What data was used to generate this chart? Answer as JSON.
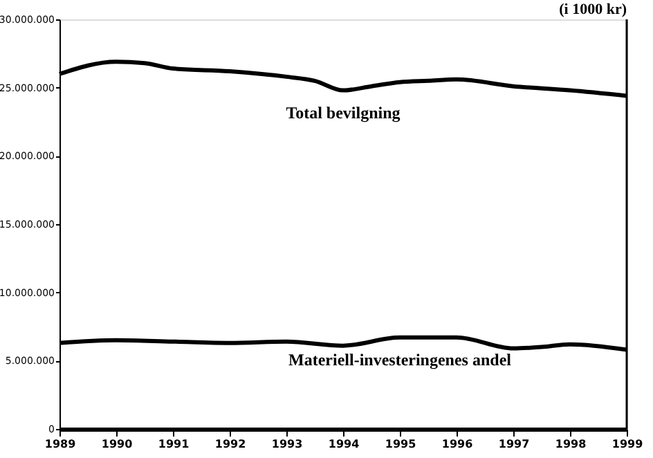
{
  "chart_data": {
    "type": "line",
    "ylabel": "(i 1000 kr)",
    "xlim": [
      1989,
      1999
    ],
    "xticks": [
      1989,
      1990,
      1991,
      1992,
      1993,
      1994,
      1995,
      1996,
      1997,
      1998,
      1999
    ],
    "ylim": [
      0,
      30000000
    ],
    "yticks": [
      0,
      {
        "value": 5000000,
        "label": "5.000.000"
      },
      {
        "value": 10000000,
        "label": "10.000.000"
      },
      {
        "value": 15000000,
        "label": "15.000.000"
      },
      {
        "value": 20000000,
        "label": "20.000.000"
      },
      {
        "value": 25000000,
        "label": "25.000.000"
      },
      {
        "value": 30000000,
        "label": "30.000.000"
      }
    ],
    "grid": false,
    "marker": "none",
    "line_style": "solid",
    "series": [
      {
        "name": "Total bevilgning",
        "color": "#000000",
        "x": [
          1989,
          1990,
          1990.5,
          1991,
          1992,
          1993,
          1993.5,
          1994,
          1994.5,
          1995,
          1995.5,
          1996,
          1997,
          1998,
          1999
        ],
        "values": [
          26000000,
          26900000,
          26800000,
          26400000,
          26200000,
          25800000,
          25500000,
          24800000,
          25100000,
          25400000,
          25500000,
          25600000,
          25100000,
          24800000,
          24400000
        ]
      },
      {
        "name": "Materiell-investeringenes andel",
        "color": "#000000",
        "x": [
          1989,
          1990,
          1991,
          1992,
          1993,
          1994,
          1995,
          1996,
          1997,
          1997.5,
          1998,
          1999
        ],
        "values": [
          6300000,
          6500000,
          6400000,
          6300000,
          6400000,
          6100000,
          6700000,
          6700000,
          5900000,
          6000000,
          6200000,
          5800000
        ]
      }
    ]
  }
}
